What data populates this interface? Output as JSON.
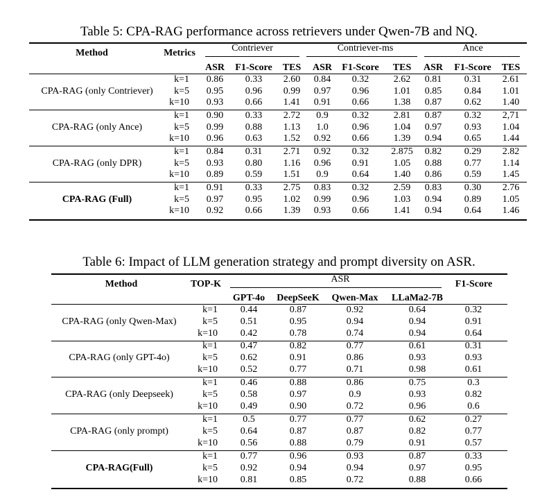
{
  "table5": {
    "caption": "Table 5: CPA-RAG performance across retrievers under Qwen-7B and NQ.",
    "method_header": "Method",
    "metrics_header": "Metrics",
    "retrievers": [
      "Contriever",
      "Contriever-ms",
      "Ance"
    ],
    "subheaders": [
      "ASR",
      "F1-Score",
      "TES",
      "ASR",
      "F1-Score",
      "TES",
      "ASR",
      "F1-Score",
      "TES"
    ],
    "groups": [
      {
        "method": "CPA-RAG (only Contriever)",
        "bold": false,
        "rows": [
          {
            "k": "k=1",
            "vals": [
              "0.86",
              "0.33",
              "2.60",
              "0.84",
              "0.32",
              "2.62",
              "0.81",
              "0.31",
              "2.61"
            ]
          },
          {
            "k": "k=5",
            "vals": [
              "0.95",
              "0.96",
              "0.99",
              "0.97",
              "0.96",
              "1.01",
              "0.85",
              "0.84",
              "1.01"
            ]
          },
          {
            "k": "k=10",
            "vals": [
              "0.93",
              "0.66",
              "1.41",
              "0.91",
              "0.66",
              "1.38",
              "0.87",
              "0.62",
              "1.40"
            ]
          }
        ]
      },
      {
        "method": "CPA-RAG (only Ance)",
        "bold": false,
        "rows": [
          {
            "k": "k=1",
            "vals": [
              "0.90",
              "0.33",
              "2.72",
              "0.9",
              "0.32",
              "2.81",
              "0.87",
              "0.32",
              "2,71"
            ]
          },
          {
            "k": "k=5",
            "vals": [
              "0.99",
              "0.88",
              "1.13",
              "1.0",
              "0.96",
              "1.04",
              "0.97",
              "0.93",
              "1.04"
            ]
          },
          {
            "k": "k=10",
            "vals": [
              "0.96",
              "0.63",
              "1.52",
              "0.92",
              "0.66",
              "1.39",
              "0.94",
              "0.65",
              "1.44"
            ]
          }
        ]
      },
      {
        "method": "CPA-RAG (only DPR)",
        "bold": false,
        "rows": [
          {
            "k": "k=1",
            "vals": [
              "0.84",
              "0.31",
              "2.71",
              "0.92",
              "0.32",
              "2.875",
              "0.82",
              "0.29",
              "2.82"
            ]
          },
          {
            "k": "k=5",
            "vals": [
              "0.93",
              "0.80",
              "1.16",
              "0.96",
              "0.91",
              "1.05",
              "0.88",
              "0.77",
              "1.14"
            ]
          },
          {
            "k": "k=10",
            "vals": [
              "0.89",
              "0.59",
              "1.51",
              "0.9",
              "0.64",
              "1.40",
              "0.86",
              "0.59",
              "1.45"
            ]
          }
        ]
      },
      {
        "method": "CPA-RAG (Full)",
        "bold": true,
        "rows": [
          {
            "k": "k=1",
            "vals": [
              "0.91",
              "0.33",
              "2.75",
              "0.83",
              "0.32",
              "2.59",
              "0.83",
              "0.30",
              "2.76"
            ]
          },
          {
            "k": "k=5",
            "vals": [
              "0.97",
              "0.95",
              "1.02",
              "0.99",
              "0.96",
              "1.03",
              "0.94",
              "0.89",
              "1.05"
            ]
          },
          {
            "k": "k=10",
            "vals": [
              "0.92",
              "0.66",
              "1.39",
              "0.93",
              "0.66",
              "1.41",
              "0.94",
              "0.64",
              "1.46"
            ]
          }
        ]
      }
    ]
  },
  "table6": {
    "caption": "Table 6: Impact of LLM generation strategy and prompt diversity on ASR.",
    "method_header": "Method",
    "topk_header": "TOP-K",
    "asr_header": "ASR",
    "f1_header": "F1-Score",
    "models": [
      "GPT-4o",
      "DeepSeeK",
      "Qwen-Max",
      "LLaMa2-7B"
    ],
    "groups": [
      {
        "method": "CPA-RAG (only Qwen-Max)",
        "bold": false,
        "rows": [
          {
            "k": "k=1",
            "vals": [
              "0.44",
              "0.87",
              "0.92",
              "0.64",
              "0.32"
            ]
          },
          {
            "k": "k=5",
            "vals": [
              "0.51",
              "0.95",
              "0.94",
              "0.94",
              "0.91"
            ]
          },
          {
            "k": "k=10",
            "vals": [
              "0.42",
              "0.78",
              "0.74",
              "0.94",
              "0.64"
            ]
          }
        ]
      },
      {
        "method": "CPA-RAG (only GPT-4o)",
        "bold": false,
        "rows": [
          {
            "k": "k=1",
            "vals": [
              "0.47",
              "0.82",
              "0.77",
              "0.61",
              "0.31"
            ]
          },
          {
            "k": "k=5",
            "vals": [
              "0.62",
              "0.91",
              "0.86",
              "0.93",
              "0.93"
            ]
          },
          {
            "k": "k=10",
            "vals": [
              "0.52",
              "0.77",
              "0.71",
              "0.98",
              "0.61"
            ]
          }
        ]
      },
      {
        "method": "CPA-RAG (only Deepseek)",
        "bold": false,
        "rows": [
          {
            "k": "k=1",
            "vals": [
              "0.46",
              "0.88",
              "0.86",
              "0.75",
              "0.3"
            ]
          },
          {
            "k": "k=5",
            "vals": [
              "0.58",
              "0.97",
              "0.9",
              "0.93",
              "0.82"
            ]
          },
          {
            "k": "k=10",
            "vals": [
              "0.49",
              "0.90",
              "0.72",
              "0.96",
              "0.6"
            ]
          }
        ]
      },
      {
        "method": "CPA-RAG (only prompt)",
        "bold": false,
        "rows": [
          {
            "k": "k=1",
            "vals": [
              "0.5",
              "0.77",
              "0.77",
              "0.62",
              "0.27"
            ]
          },
          {
            "k": "k=5",
            "vals": [
              "0.64",
              "0.87",
              "0.87",
              "0.82",
              "0.77"
            ]
          },
          {
            "k": "k=10",
            "vals": [
              "0.56",
              "0.88",
              "0.79",
              "0.91",
              "0.57"
            ]
          }
        ]
      },
      {
        "method": "CPA-RAG(Full)",
        "bold": true,
        "rows": [
          {
            "k": "k=1",
            "vals": [
              "0.77",
              "0.96",
              "0.93",
              "0.87",
              "0.33"
            ]
          },
          {
            "k": "k=5",
            "vals": [
              "0.92",
              "0.94",
              "0.94",
              "0.97",
              "0.95"
            ]
          },
          {
            "k": "k=10",
            "vals": [
              "0.81",
              "0.85",
              "0.72",
              "0.88",
              "0.66"
            ]
          }
        ]
      }
    ]
  }
}
